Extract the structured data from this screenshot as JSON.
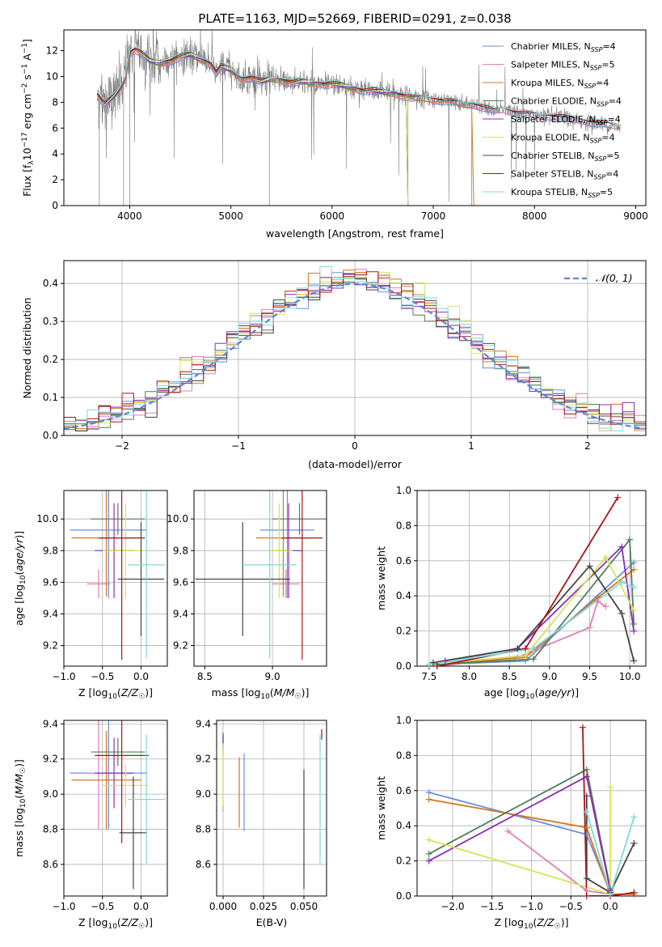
{
  "title": "PLATE=1163, MJD=52669, FIBERID=0291, z=0.038",
  "colors": {
    "Chabrier MILES": "#6a8fdc",
    "Salpeter MILES": "#e07fb8",
    "Kroupa MILES": "#d8741c",
    "Chabrier ELODIE": "#4f7f5a",
    "Salpeter ELODIE": "#8e2cb8",
    "Kroupa ELODIE": "#cfe65a",
    "Chabrier STELIB": "#444444",
    "Salpeter STELIB": "#a8141c",
    "Kroupa STELIB": "#7fd8dc",
    "data": "#7f7f7f",
    "gauss": "#5b87d6"
  },
  "chart_data": [
    {
      "id": "spectrum",
      "type": "line",
      "title": "PLATE=1163, MJD=52669, FIBERID=0291, z=0.038",
      "xlabel": "wavelength [Angstrom, rest frame]",
      "ylabel": "Flux [f",
      "ylabel_parts": [
        "Flux [f",
        "λ",
        "10",
        "−17",
        " erg cm",
        "−2",
        " s",
        "−1",
        " A",
        "−1",
        "]"
      ],
      "xlim": [
        3350,
        9100
      ],
      "ylim": [
        0,
        13.6
      ],
      "xticks": [
        4000,
        5000,
        6000,
        7000,
        8000,
        9000
      ],
      "yticks": [
        0,
        2,
        4,
        6,
        8,
        10,
        12
      ],
      "legend_position": "top-right",
      "data_range": [
        3680,
        8850
      ],
      "continuum": {
        "x": [
          3680,
          3750,
          3850,
          3950,
          4000,
          4050,
          4100,
          4200,
          4300,
          4400,
          4500,
          4600,
          4700,
          4800,
          4860,
          4900,
          5000,
          5100,
          5200,
          5300,
          5400,
          5500,
          5600,
          5700,
          5800,
          5900,
          6000,
          6100,
          6200,
          6300,
          6400,
          6500,
          6560,
          6600,
          6700,
          6800,
          6900,
          7000,
          7100,
          7200,
          7300,
          7400,
          7500,
          7600,
          7700,
          7800,
          7900,
          8000,
          8100,
          8200,
          8300,
          8400,
          8500,
          8600,
          8700,
          8850
        ],
        "y": [
          8.6,
          7.8,
          8.5,
          9.6,
          11.8,
          12.1,
          11.9,
          11.2,
          11.0,
          11.2,
          11.5,
          11.7,
          11.3,
          11.0,
          10.2,
          10.8,
          10.5,
          9.8,
          9.9,
          9.6,
          9.8,
          9.7,
          9.5,
          9.6,
          9.5,
          9.4,
          9.4,
          9.3,
          9.1,
          8.9,
          8.9,
          8.8,
          8.7,
          8.7,
          8.5,
          8.3,
          8.3,
          8.2,
          8.1,
          8.0,
          7.8,
          7.8,
          7.6,
          7.3,
          7.4,
          7.2,
          7.1,
          7.0,
          6.9,
          6.9,
          6.8,
          6.6,
          6.5,
          6.4,
          6.3,
          6.0
        ]
      },
      "series": [
        {
          "name": "Chabrier MILES",
          "n_ssp": "4",
          "x_end": 8850
        },
        {
          "name": "Salpeter MILES",
          "n_ssp": "5",
          "x_end": 8850
        },
        {
          "name": "Kroupa MILES",
          "n_ssp": "4",
          "x_end": 7400
        },
        {
          "name": "Chabrier ELODIE",
          "n_ssp": "4",
          "x_end": 6750
        },
        {
          "name": "Salpeter ELODIE",
          "n_ssp": "4",
          "x_end": 6750
        },
        {
          "name": "Kroupa ELODIE",
          "n_ssp": "4",
          "x_end": 6750
        },
        {
          "name": "Chabrier STELIB",
          "n_ssp": "5",
          "x_end": 8850
        },
        {
          "name": "Salpeter STELIB",
          "n_ssp": "4",
          "x_end": 8850
        },
        {
          "name": "Kroupa STELIB",
          "n_ssp": "5",
          "x_end": 8850
        }
      ]
    },
    {
      "id": "residuals",
      "type": "bar",
      "xlabel": "(data-model)/error",
      "ylabel": "Normed distribution",
      "xlim": [
        -2.5,
        2.5
      ],
      "ylim": [
        0,
        0.46
      ],
      "xticks": [
        -2,
        -1,
        0,
        1,
        2
      ],
      "yticks": [
        0.0,
        0.1,
        0.2,
        0.3,
        0.4
      ],
      "grid": true,
      "bin_width": 0.1,
      "legend": "𝒩(0, 1)",
      "legend_position": "top-right",
      "gaussian": {
        "mean": 0,
        "sigma": 1
      }
    },
    {
      "id": "age-vs-Z",
      "type": "scatter",
      "xlabel": "Z [log10(Z/Z☉)]",
      "ylabel": "age  [log10(age/yr)]",
      "xlim": [
        -1.0,
        0.34
      ],
      "ylim": [
        9.07,
        10.18
      ],
      "xticks": [
        -1.0,
        -0.5,
        0.0
      ],
      "yticks": [
        9.2,
        9.4,
        9.6,
        9.8,
        10.0
      ],
      "grid": true,
      "points": [
        {
          "series": "Chabrier MILES",
          "x": -0.42,
          "y": 9.93,
          "xerr": 0.5,
          "yerr": 0.43
        },
        {
          "series": "Salpeter MILES",
          "x": -0.55,
          "y": 9.59,
          "xerr": 0.15,
          "yerr": 0.09
        },
        {
          "series": "Kroupa MILES",
          "x": -0.45,
          "y": 9.88,
          "xerr": 0.45,
          "yerr": 0.37
        },
        {
          "series": "Chabrier ELODIE",
          "x": -0.3,
          "y": 10.0,
          "xerr": 0.35,
          "yerr": 0.1
        },
        {
          "series": "Salpeter ELODIE",
          "x": -0.35,
          "y": 9.8,
          "xerr": 0.25,
          "yerr": 0.3
        },
        {
          "series": "Kroupa ELODIE",
          "x": -0.2,
          "y": 9.8,
          "xerr": 0.3,
          "yerr": 0.3
        },
        {
          "series": "Chabrier STELIB",
          "x": 0.0,
          "y": 9.62,
          "xerr": 0.3,
          "yerr": 0.36
        },
        {
          "series": "Salpeter STELIB",
          "x": -0.25,
          "y": 9.88,
          "xerr": 0.3,
          "yerr": 0.77
        },
        {
          "series": "Kroupa STELIB",
          "x": 0.07,
          "y": 9.71,
          "xerr": 0.24,
          "yerr": 0.59
        }
      ]
    },
    {
      "id": "age-vs-mass",
      "type": "scatter",
      "xlabel": "mass [log10(M/M☉)]",
      "ylabel": "",
      "xlim": [
        8.42,
        9.4
      ],
      "ylim": [
        9.07,
        10.18
      ],
      "xticks": [
        8.5,
        9.0
      ],
      "yticks": [
        9.2,
        9.4,
        9.6,
        9.8,
        10.0
      ],
      "grid": true,
      "points": [
        {
          "series": "Chabrier MILES",
          "x": 9.11,
          "y": 9.93,
          "xerr": 0.2,
          "yerr": 0.43
        },
        {
          "series": "Salpeter MILES",
          "x": 9.1,
          "y": 9.59,
          "xerr": 0.1,
          "yerr": 0.09
        },
        {
          "series": "Kroupa MILES",
          "x": 9.08,
          "y": 9.88,
          "xerr": 0.2,
          "yerr": 0.37
        },
        {
          "series": "Chabrier ELODIE",
          "x": 9.2,
          "y": 10.0,
          "xerr": 0.2,
          "yerr": 0.1
        },
        {
          "series": "Salpeter ELODIE",
          "x": 9.12,
          "y": 9.8,
          "xerr": 0.1,
          "yerr": 0.3
        },
        {
          "series": "Kroupa ELODIE",
          "x": 9.05,
          "y": 9.8,
          "xerr": 0.1,
          "yerr": 0.3
        },
        {
          "series": "Chabrier STELIB",
          "x": 8.78,
          "y": 9.62,
          "xerr": 0.35,
          "yerr": 0.36
        },
        {
          "series": "Salpeter STELIB",
          "x": 9.22,
          "y": 9.88,
          "xerr": 0.15,
          "yerr": 0.77
        },
        {
          "series": "Kroupa STELIB",
          "x": 8.98,
          "y": 9.71,
          "xerr": 0.2,
          "yerr": 0.59
        }
      ]
    },
    {
      "id": "weight-vs-age",
      "type": "line",
      "xlabel": "age  [log10(age/yr)]",
      "ylabel": "mass weight",
      "xlim": [
        7.35,
        10.2
      ],
      "ylim": [
        0,
        1.0
      ],
      "xticks": [
        7.5,
        8.0,
        8.5,
        9.0,
        9.5,
        10.0
      ],
      "yticks": [
        0.0,
        0.2,
        0.4,
        0.6,
        0.8,
        1.0
      ],
      "grid": true,
      "series": [
        {
          "name": "Chabrier MILES",
          "x": [
            7.6,
            8.7,
            10.05
          ],
          "y": [
            0.01,
            0.03,
            0.59
          ]
        },
        {
          "name": "Salpeter MILES",
          "x": [
            7.6,
            8.6,
            9.5,
            9.6,
            9.7
          ],
          "y": [
            0.0,
            0.05,
            0.22,
            0.37,
            0.34
          ]
        },
        {
          "name": "Kroupa MILES",
          "x": [
            7.6,
            8.7,
            9.6,
            10.05
          ],
          "y": [
            0.01,
            0.05,
            0.39,
            0.55
          ]
        },
        {
          "name": "Chabrier ELODIE",
          "x": [
            7.6,
            8.8,
            10.0,
            10.05
          ],
          "y": [
            0.01,
            0.04,
            0.72,
            0.24
          ]
        },
        {
          "name": "Salpeter ELODIE",
          "x": [
            7.7,
            8.6,
            9.9,
            10.05
          ],
          "y": [
            0.03,
            0.1,
            0.68,
            0.2
          ]
        },
        {
          "name": "Kroupa ELODIE",
          "x": [
            7.5,
            8.7,
            9.7,
            10.05
          ],
          "y": [
            0.01,
            0.06,
            0.62,
            0.32
          ]
        },
        {
          "name": "Chabrier STELIB",
          "x": [
            7.55,
            8.6,
            9.5,
            9.9,
            10.05
          ],
          "y": [
            0.02,
            0.1,
            0.57,
            0.3,
            0.03
          ]
        },
        {
          "name": "Salpeter STELIB",
          "x": [
            7.6,
            8.7,
            9.85
          ],
          "y": [
            0.0,
            0.1,
            0.96
          ]
        },
        {
          "name": "Kroupa STELIB",
          "x": [
            7.5,
            8.8,
            9.9,
            10.05
          ],
          "y": [
            0.01,
            0.1,
            0.48,
            0.45
          ]
        }
      ]
    },
    {
      "id": "mass-vs-Z",
      "type": "scatter",
      "xlabel": "Z [log10(Z/Z☉)]",
      "ylabel": "mass [log10(M/M☉)]",
      "xlim": [
        -1.0,
        0.34
      ],
      "ylim": [
        8.42,
        9.42
      ],
      "xticks": [
        -1.0,
        -0.5,
        0.0
      ],
      "yticks": [
        8.6,
        8.8,
        9.0,
        9.2,
        9.4
      ],
      "grid": true,
      "points": [
        {
          "series": "Chabrier MILES",
          "x": -0.42,
          "y": 9.12,
          "xerr": 0.5,
          "yerr": 0.32
        },
        {
          "series": "Salpeter MILES",
          "x": -0.55,
          "y": 9.12,
          "xerr": 0.15,
          "yerr": 0.32
        },
        {
          "series": "Kroupa MILES",
          "x": -0.45,
          "y": 9.08,
          "xerr": 0.45,
          "yerr": 0.28
        },
        {
          "series": "Chabrier ELODIE",
          "x": -0.3,
          "y": 9.24,
          "xerr": 0.35,
          "yerr": 0.08
        },
        {
          "series": "Salpeter ELODIE",
          "x": -0.35,
          "y": 9.12,
          "xerr": 0.25,
          "yerr": 0.2
        },
        {
          "series": "Kroupa ELODIE",
          "x": -0.2,
          "y": 9.05,
          "xerr": 0.3,
          "yerr": 0.12
        },
        {
          "series": "Chabrier STELIB",
          "x": -0.1,
          "y": 8.78,
          "xerr": 0.18,
          "yerr": 0.32
        },
        {
          "series": "Salpeter STELIB",
          "x": -0.25,
          "y": 9.22,
          "xerr": 0.35,
          "yerr": 0.5
        },
        {
          "series": "Kroupa STELIB",
          "x": 0.07,
          "y": 8.97,
          "xerr": 0.24,
          "yerr": 0.37
        }
      ]
    },
    {
      "id": "mass-vs-ebv",
      "type": "scatter",
      "xlabel": "E(B-V)",
      "ylabel": "",
      "xlim": [
        -0.004,
        0.064
      ],
      "ylim": [
        8.42,
        9.42
      ],
      "xticks": [
        0.0,
        0.025,
        0.05
      ],
      "yticks": [
        8.6,
        8.8,
        9.0,
        9.2,
        9.4
      ],
      "grid": true,
      "points": [
        {
          "series": "Chabrier MILES",
          "x": 0.013,
          "y": 9.01,
          "xerr": 0,
          "yerr": 0.22
        },
        {
          "series": "Salpeter MILES",
          "x": 0.0,
          "y": 9.12,
          "xerr": 0,
          "yerr": 0.22
        },
        {
          "series": "Kroupa MILES",
          "x": 0.01,
          "y": 9.01,
          "xerr": 0,
          "yerr": 0.2
        },
        {
          "series": "Chabrier ELODIE",
          "x": 0.0,
          "y": 9.28,
          "xerr": 0,
          "yerr": 0.05
        },
        {
          "series": "Salpeter ELODIE",
          "x": 0.0,
          "y": 9.31,
          "xerr": 0,
          "yerr": 0.04
        },
        {
          "series": "Kroupa ELODIE",
          "x": 0.0,
          "y": 9.11,
          "xerr": 0,
          "yerr": 0.18
        },
        {
          "series": "Chabrier STELIB",
          "x": 0.05,
          "y": 8.8,
          "xerr": 0,
          "yerr": 0.34
        },
        {
          "series": "Salpeter STELIB",
          "x": 0.061,
          "y": 9.34,
          "xerr": 0,
          "yerr": 0.03
        },
        {
          "series": "Kroupa STELIB",
          "x": 0.06,
          "y": 8.97,
          "xerr": 0,
          "yerr": 0.37
        }
      ]
    },
    {
      "id": "weight-vs-Z",
      "type": "line",
      "xlabel": "Z [log10(Z/Z☉)]",
      "ylabel": "mass weight",
      "xlim": [
        -2.45,
        0.45
      ],
      "ylim": [
        0,
        1.0
      ],
      "xticks": [
        -2.0,
        -1.5,
        -1.0,
        -0.5,
        0.0
      ],
      "yticks": [
        0.0,
        0.2,
        0.4,
        0.6,
        0.8,
        1.0
      ],
      "grid": true,
      "series": [
        {
          "name": "Chabrier MILES",
          "x": [
            -2.3,
            -0.3,
            0.0
          ],
          "y": [
            0.59,
            0.35,
            0.02
          ]
        },
        {
          "name": "Salpeter MILES",
          "x": [
            -1.3,
            -0.3,
            0.0
          ],
          "y": [
            0.37,
            0.03,
            0.01
          ]
        },
        {
          "name": "Kroupa MILES",
          "x": [
            -2.3,
            -0.3,
            0.0,
            0.3
          ],
          "y": [
            0.55,
            0.39,
            0.01,
            0.01
          ]
        },
        {
          "name": "Chabrier ELODIE",
          "x": [
            -2.3,
            -0.3,
            0.0
          ],
          "y": [
            0.24,
            0.72,
            0.04
          ]
        },
        {
          "name": "Salpeter ELODIE",
          "x": [
            -2.3,
            -0.3,
            0.0
          ],
          "y": [
            0.2,
            0.68,
            0.03
          ]
        },
        {
          "name": "Kroupa ELODIE",
          "x": [
            -2.3,
            0.0,
            0.0
          ],
          "y": [
            0.32,
            0.01,
            0.62
          ]
        },
        {
          "name": "Chabrier STELIB",
          "x": [
            -0.3,
            -0.3,
            0.0,
            0.3
          ],
          "y": [
            0.57,
            0.1,
            0.02,
            0.3
          ]
        },
        {
          "name": "Salpeter STELIB",
          "x": [
            -0.35,
            -0.3,
            0.0,
            0.3
          ],
          "y": [
            0.96,
            0.0,
            0.0,
            0.02
          ]
        },
        {
          "name": "Kroupa STELIB",
          "x": [
            -0.3,
            0.0,
            0.3
          ],
          "y": [
            0.48,
            0.01,
            0.45
          ]
        }
      ]
    }
  ]
}
